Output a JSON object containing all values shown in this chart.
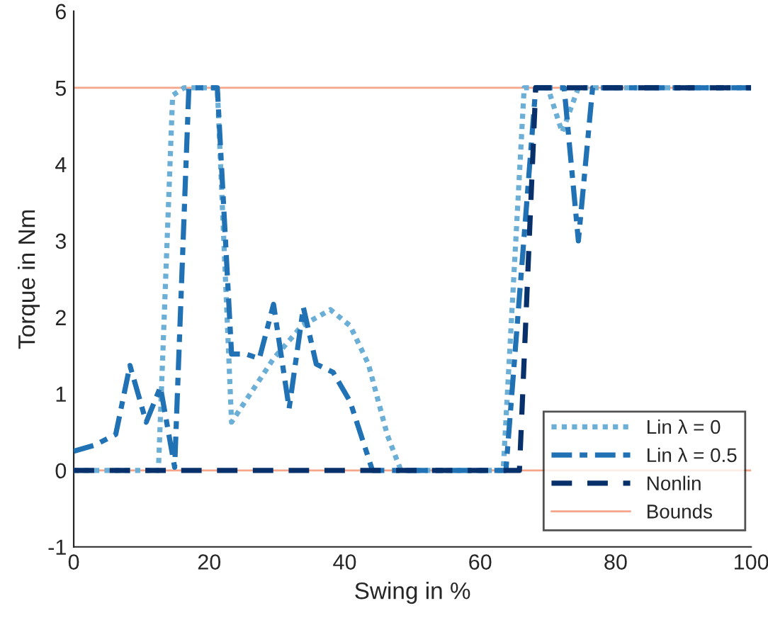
{
  "chart_data": {
    "type": "line",
    "xlabel": "Swing in %",
    "ylabel": "Torque in Nm",
    "xlim": [
      0,
      100
    ],
    "ylim": [
      -1,
      6
    ],
    "xticks": [
      0,
      20,
      40,
      60,
      80,
      100
    ],
    "yticks": [
      -1,
      0,
      1,
      2,
      3,
      4,
      5,
      6
    ],
    "grid": false,
    "legend": "bottom right",
    "marker": "none",
    "series": [
      {
        "name": "Lin λ = 0",
        "color": "#6baed6",
        "line_style": "dotted",
        "x": [
          0,
          12.5,
          14.6,
          16.3,
          21.2,
          23.3,
          29.5,
          33.7,
          37.9,
          40.8,
          43.5,
          46.3,
          48.3,
          63.4,
          66.5,
          70,
          72.1,
          74.5,
          100
        ],
        "values": [
          0,
          0,
          4.9,
          5,
          5,
          0.63,
          1.46,
          1.89,
          2.1,
          1.89,
          1.39,
          0.46,
          0,
          0,
          5,
          5,
          4.42,
          5,
          5
        ]
      },
      {
        "name": "Lin λ = 0.5",
        "color": "#2171b5",
        "line_style": "dashdot",
        "x": [
          0,
          3.1,
          6.2,
          8.3,
          10.7,
          12.8,
          14.9,
          17,
          21.2,
          23.3,
          25.4,
          27.4,
          29.5,
          31.8,
          33.9,
          35.8,
          38.3,
          40.8,
          44.1,
          63.8,
          68.2,
          72.4,
          74.5,
          76.6,
          100
        ],
        "values": [
          0.25,
          0.33,
          0.47,
          1.37,
          0.63,
          1.09,
          0.04,
          5,
          5,
          1.52,
          1.52,
          1.46,
          2.17,
          0.81,
          2.13,
          1.39,
          1.28,
          0.9,
          0,
          0,
          5,
          5,
          3.0,
          5,
          5
        ]
      },
      {
        "name": "Nonlin",
        "color": "#08306b",
        "line_style": "dashed",
        "x": [
          0,
          65.8,
          68.2,
          100
        ],
        "values": [
          0,
          0,
          5,
          5
        ]
      }
    ],
    "ref_lines": [
      {
        "axis": "y",
        "value": 5,
        "label": "Bounds",
        "color": "#f4a58a",
        "line_style": "solid"
      },
      {
        "axis": "y",
        "value": 0,
        "label": null,
        "color": "#f4a58a",
        "line_style": "solid"
      }
    ]
  }
}
